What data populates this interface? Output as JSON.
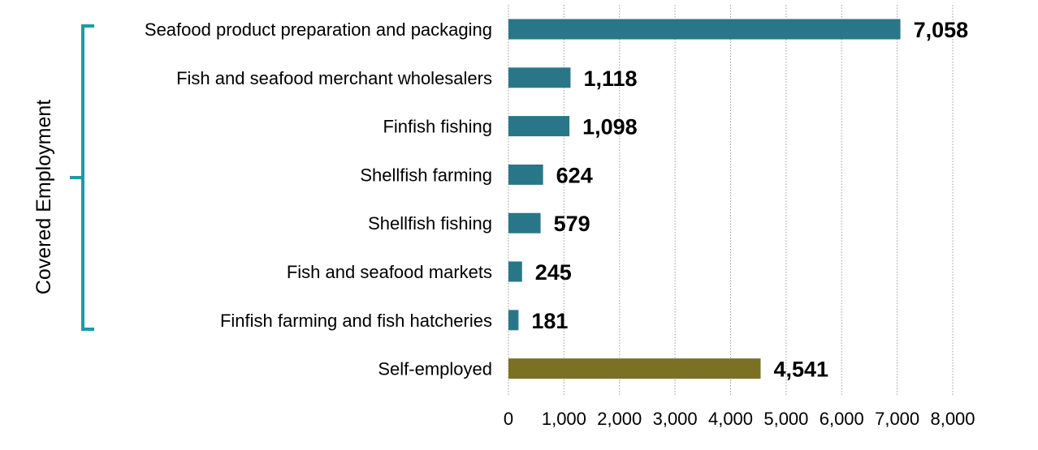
{
  "chart_data": {
    "type": "bar",
    "orientation": "horizontal",
    "categories": [
      "Seafood product preparation and packaging",
      "Fish and seafood merchant wholesalers",
      "Finfish fishing",
      "Shellfish farming",
      "Shellfish fishing",
      "Fish and seafood markets",
      "Finfish farming and fish hatcheries",
      "Self-employed"
    ],
    "values": [
      7058,
      1118,
      1098,
      624,
      579,
      245,
      181,
      4541
    ],
    "value_labels": [
      "7,058",
      "1,118",
      "1,098",
      "624",
      "579",
      "245",
      "181",
      "4,541"
    ],
    "bar_colors": [
      "#2A7689",
      "#2A7689",
      "#2A7689",
      "#2A7689",
      "#2A7689",
      "#2A7689",
      "#2A7689",
      "#7A7124"
    ],
    "xlim": [
      0,
      8000
    ],
    "x_ticks": [
      0,
      1000,
      2000,
      3000,
      4000,
      5000,
      6000,
      7000,
      8000
    ],
    "x_tick_labels": [
      "0",
      "1,000",
      "2,000",
      "3,000",
      "4,000",
      "5,000",
      "6,000",
      "7,000",
      "8,000"
    ],
    "grid": "vertical dotted",
    "group_label": "Covered Employment",
    "group_bracket_color": "#1E9AA6",
    "title": "",
    "xlabel": "",
    "ylabel": ""
  }
}
